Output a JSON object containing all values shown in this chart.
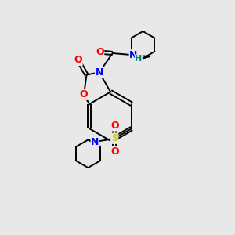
{
  "background_color": "#e8e8e8",
  "bond_color": "#000000",
  "atom_colors": {
    "O": "#ff0000",
    "N": "#0000ff",
    "S": "#cccc00",
    "H": "#008080",
    "C": "#000000"
  },
  "lw": 1.4,
  "fontsize": 9
}
